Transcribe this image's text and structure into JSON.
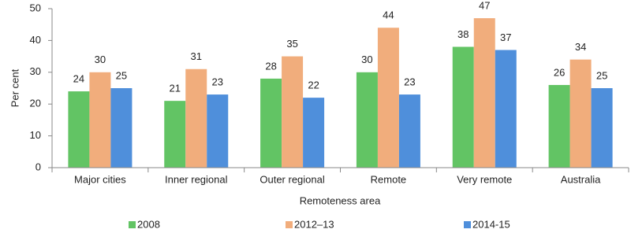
{
  "chart_data": {
    "type": "bar",
    "x_label": "Remoteness area",
    "y_label": "Per cent",
    "categories": [
      "Major cities",
      "Inner regional",
      "Outer regional",
      "Remote",
      "Very remote",
      "Australia"
    ],
    "series": [
      {
        "name": "2008",
        "color": "#62c464",
        "values": [
          24,
          21,
          28,
          30,
          38,
          26
        ]
      },
      {
        "name": "2012–13",
        "color": "#f1ad7c",
        "values": [
          30,
          31,
          35,
          44,
          47,
          34
        ]
      },
      {
        "name": "2014-15",
        "color": "#4f8fdb",
        "values": [
          25,
          23,
          22,
          23,
          37,
          25
        ]
      }
    ],
    "ylim": [
      0,
      50
    ],
    "yticks": [
      0,
      10,
      20,
      30,
      40,
      50
    ],
    "grid": false,
    "legend": "bottom"
  }
}
